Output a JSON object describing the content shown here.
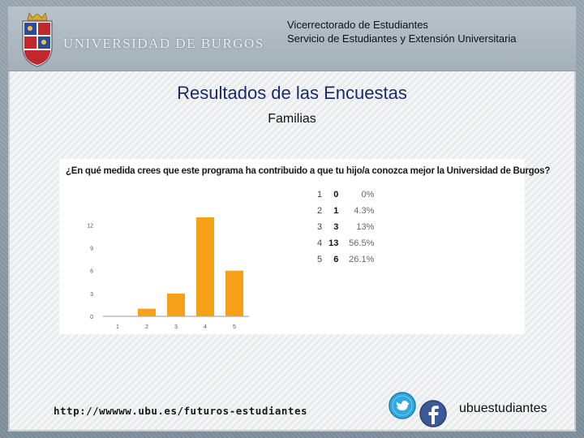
{
  "header": {
    "university_name": "UNIVERSIDAD DE BURGOS",
    "line1": "Vicerrectorado de Estudiantes",
    "line2": "Servicio de Estudiantes y Extensión Universitaria"
  },
  "title": "Resultados de las Encuestas",
  "subtitle": "Familias",
  "chart_data": {
    "type": "bar",
    "title": "¿En qué medida crees que este programa ha contribuido a que tu hijo/a conozca mejor la Universidad de Burgos?",
    "categories": [
      "1",
      "2",
      "3",
      "4",
      "5"
    ],
    "values": [
      0,
      1,
      3,
      13,
      6
    ],
    "percentages": [
      "0%",
      "4.3%",
      "13%",
      "56.5%",
      "26.1%"
    ],
    "y_ticks": [
      "0",
      "3",
      "6",
      "9",
      "12"
    ],
    "ylim": [
      0,
      13
    ],
    "bar_color": "#f7a11a",
    "grid": false,
    "xlabel": "",
    "ylabel": ""
  },
  "footer": {
    "url": "http://wwwww.ubu.es/futuros-estudiantes",
    "social_handle": "ubuestudiantes",
    "icons": [
      "twitter-icon",
      "facebook-icon"
    ]
  },
  "colors": {
    "title": "#1b2a6b",
    "twitter": "#2fa8e0",
    "facebook": "#3b5998"
  }
}
